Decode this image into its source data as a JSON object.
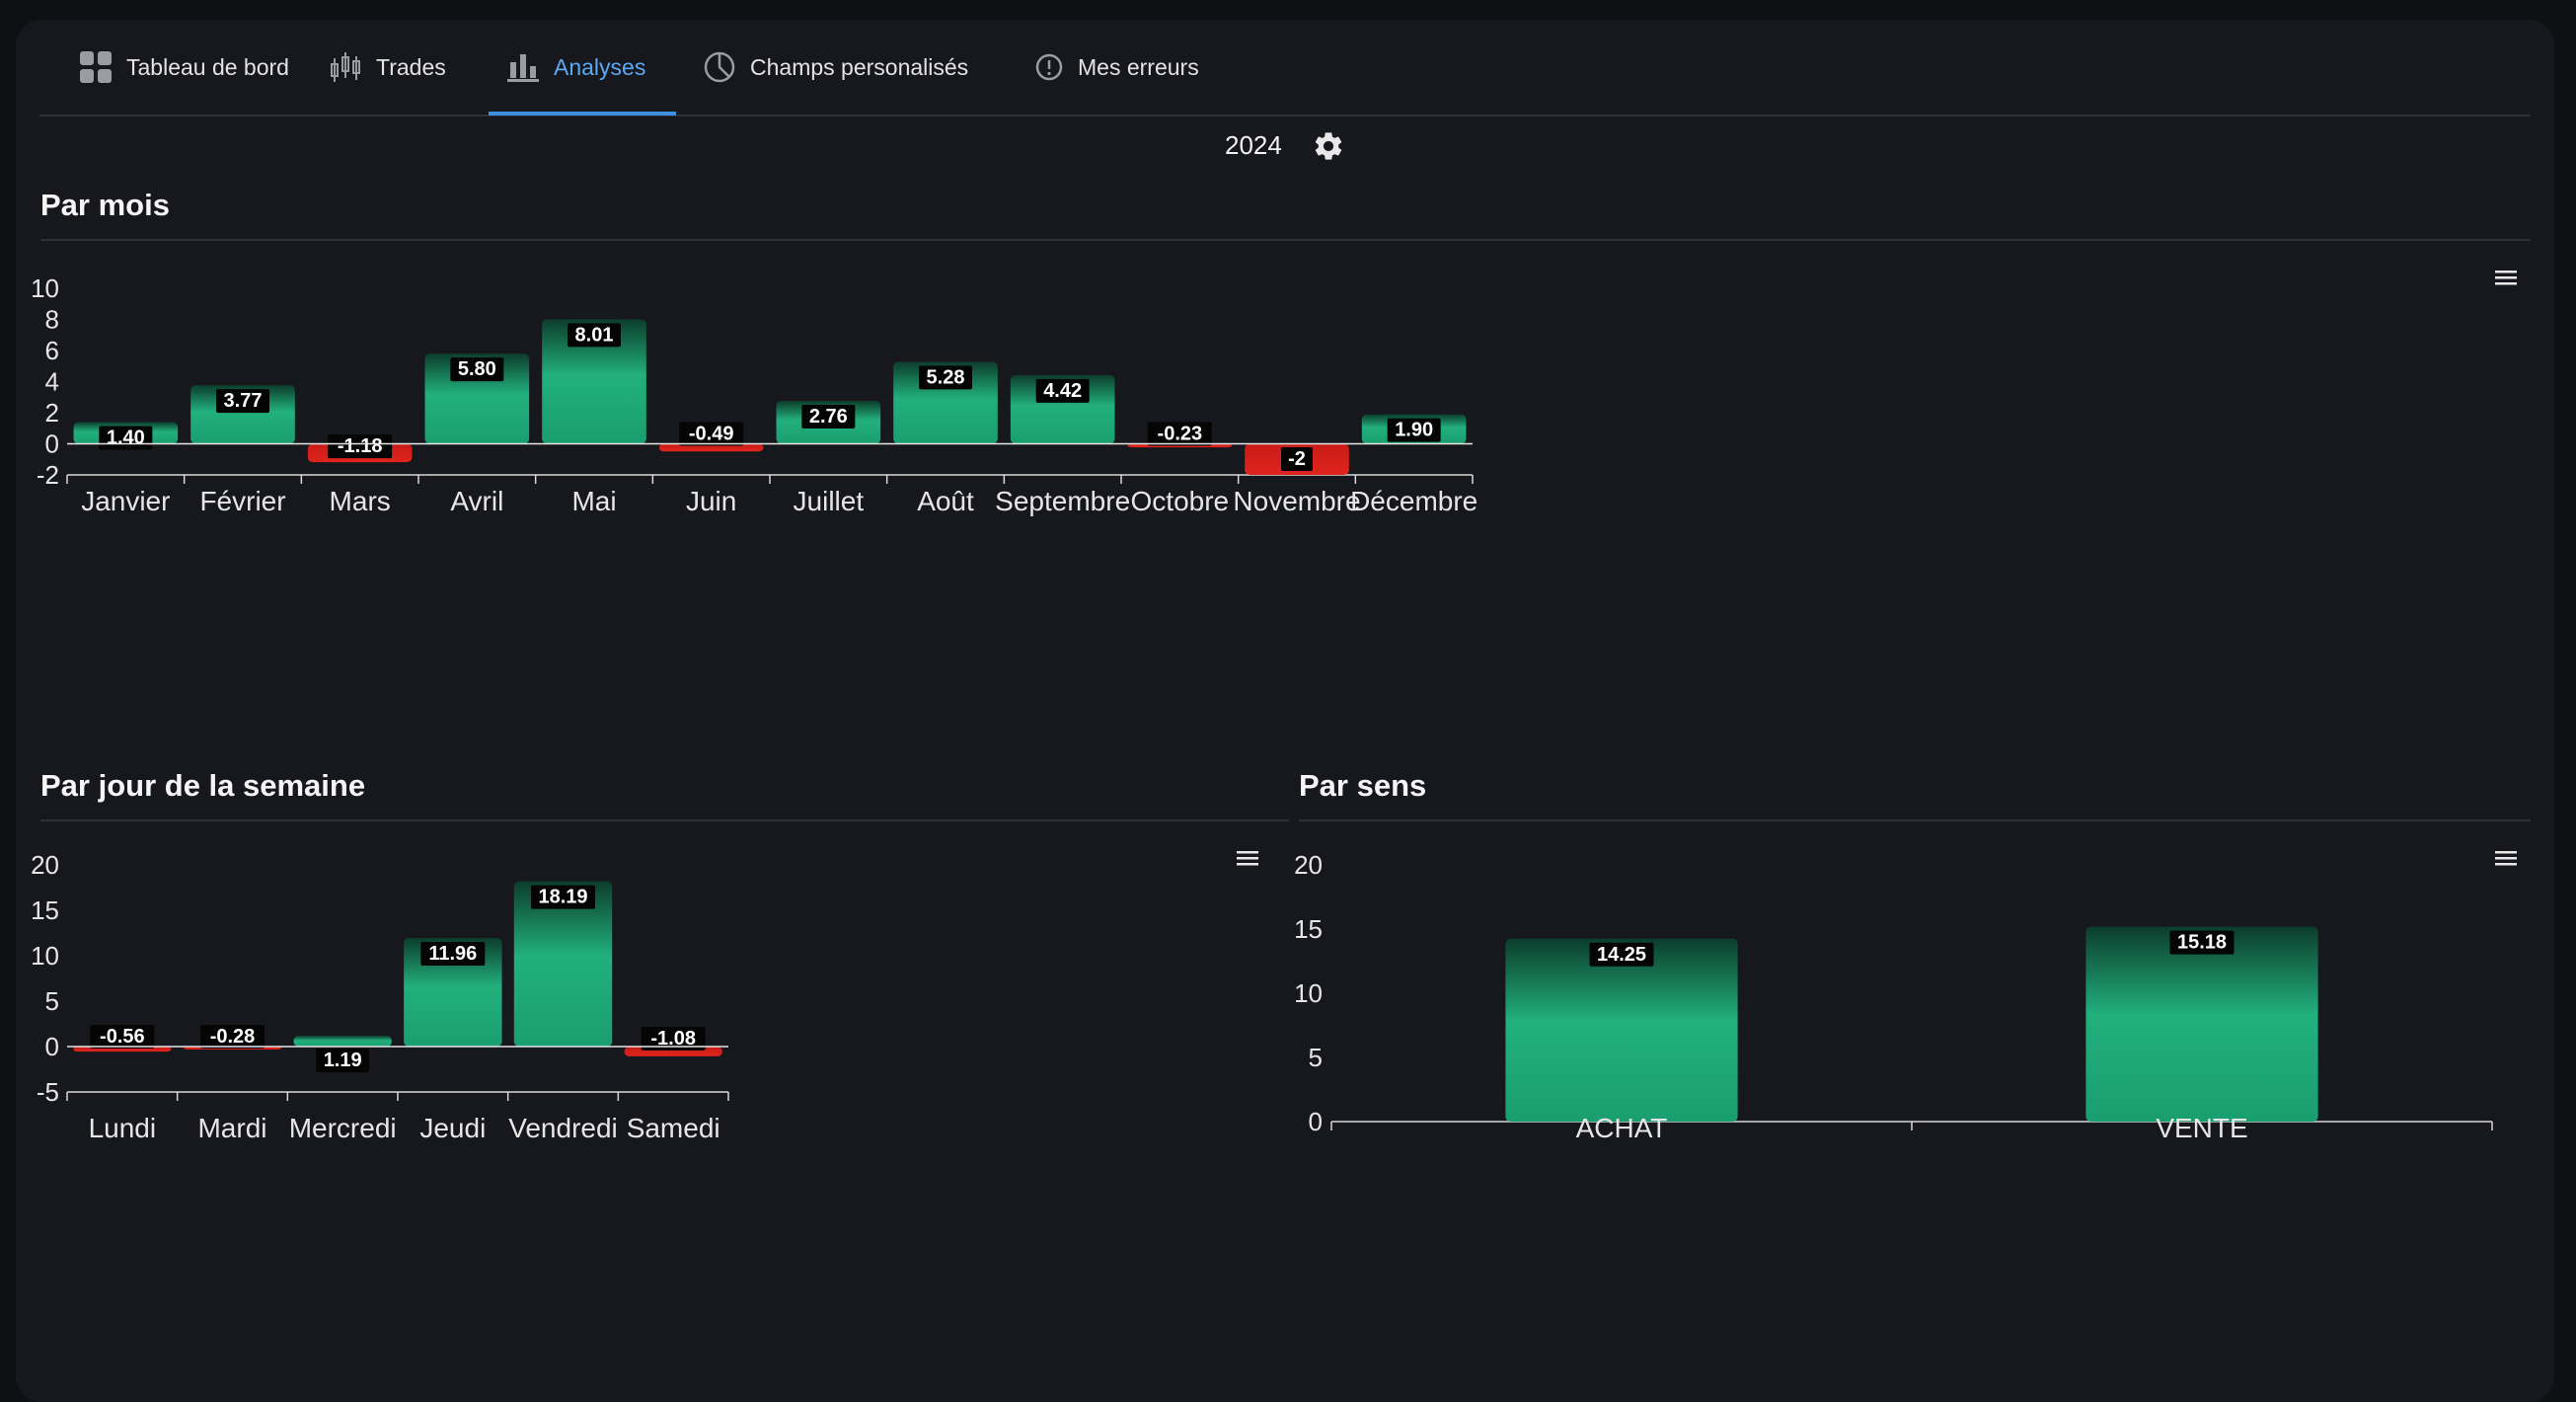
{
  "tabs": [
    {
      "label": "Tableau de bord",
      "icon": "dashboard-icon"
    },
    {
      "label": "Trades",
      "icon": "candlestick-icon"
    },
    {
      "label": "Analyses",
      "icon": "bar-chart-icon"
    },
    {
      "label": "Champs personalisés",
      "icon": "pie-chart-icon"
    },
    {
      "label": "Mes erreurs",
      "icon": "alert-circle-icon"
    }
  ],
  "active_tab": "Analyses",
  "year": "2024",
  "sections": {
    "monthly": "Par mois",
    "weekday": "Par jour de la semaine",
    "direction": "Par sens"
  },
  "colors": {
    "positive": "#22b07d",
    "negative": "#e0241d",
    "accent": "#5aa9f5"
  },
  "chart_data": [
    {
      "type": "bar",
      "title": "Par mois",
      "categories": [
        "Janvier",
        "Février",
        "Mars",
        "Avril",
        "Mai",
        "Juin",
        "Juillet",
        "Août",
        "Septembre",
        "Octobre",
        "Novembre",
        "Décembre"
      ],
      "values": [
        1.4,
        3.77,
        -1.18,
        5.8,
        8.01,
        -0.49,
        2.76,
        5.28,
        4.42,
        -0.23,
        -2,
        1.9
      ],
      "labels": [
        "1.40",
        "3.77",
        "-1.18",
        "5.80",
        "8.01",
        "-0.49",
        "2.76",
        "5.28",
        "4.42",
        "-0.23",
        "-2",
        "1.90"
      ],
      "ylim": [
        -2,
        10
      ],
      "yticks": [
        10,
        8,
        6,
        4,
        2,
        0,
        -2
      ]
    },
    {
      "type": "bar",
      "title": "Par jour de la semaine",
      "categories": [
        "Lundi",
        "Mardi",
        "Mercredi",
        "Jeudi",
        "Vendredi",
        "Samedi"
      ],
      "values": [
        -0.56,
        -0.28,
        1.19,
        11.96,
        18.19,
        -1.08
      ],
      "labels": [
        "-0.56",
        "-0.28",
        "1.19",
        "11.96",
        "18.19",
        "-1.08"
      ],
      "ylim": [
        -5,
        20
      ],
      "yticks": [
        20,
        15,
        10,
        5,
        0,
        -5
      ]
    },
    {
      "type": "bar",
      "title": "Par sens",
      "categories": [
        "ACHAT",
        "VENTE"
      ],
      "values": [
        14.25,
        15.18
      ],
      "labels": [
        "14.25",
        "15.18"
      ],
      "ylim": [
        0,
        20
      ],
      "yticks": [
        20,
        15,
        10,
        5,
        0
      ]
    }
  ]
}
